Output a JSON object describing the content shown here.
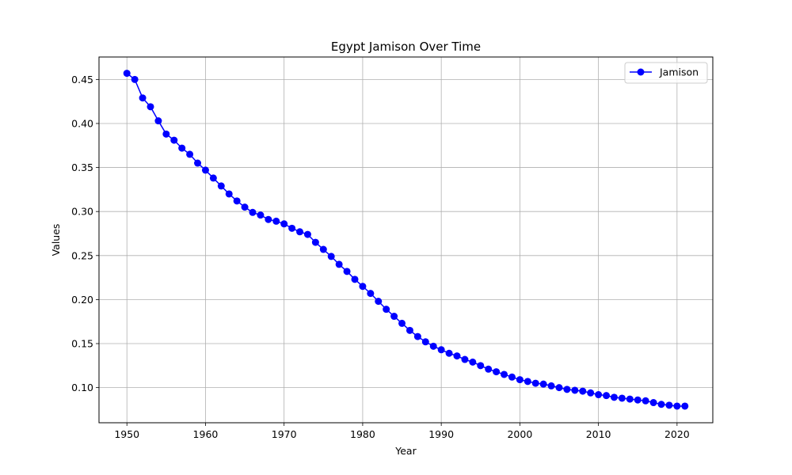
{
  "chart_data": {
    "type": "line",
    "title": "Egypt Jamison Over Time",
    "xlabel": "Year",
    "ylabel": "Values",
    "xlim": [
      1946.45,
      2024.55
    ],
    "ylim": [
      0.0601,
      0.4755
    ],
    "xticks": [
      1950,
      1960,
      1970,
      1980,
      1990,
      2000,
      2010,
      2020
    ],
    "yticks": [
      0.1,
      0.15,
      0.2,
      0.25,
      0.3,
      0.35,
      0.4,
      0.45
    ],
    "grid": true,
    "legend_position": "top-right",
    "series": [
      {
        "name": "Jamison",
        "color": "#0000ff",
        "marker": "circle",
        "x": [
          1950,
          1951,
          1952,
          1953,
          1954,
          1955,
          1956,
          1957,
          1958,
          1959,
          1960,
          1961,
          1962,
          1963,
          1964,
          1965,
          1966,
          1967,
          1968,
          1969,
          1970,
          1971,
          1972,
          1973,
          1974,
          1975,
          1976,
          1977,
          1978,
          1979,
          1980,
          1981,
          1982,
          1983,
          1984,
          1985,
          1986,
          1987,
          1988,
          1989,
          1990,
          1991,
          1992,
          1993,
          1994,
          1995,
          1996,
          1997,
          1998,
          1999,
          2000,
          2001,
          2002,
          2003,
          2004,
          2005,
          2006,
          2007,
          2008,
          2009,
          2010,
          2011,
          2012,
          2013,
          2014,
          2015,
          2016,
          2017,
          2018,
          2019,
          2020,
          2021
        ],
        "y": [
          0.457,
          0.45,
          0.429,
          0.419,
          0.403,
          0.388,
          0.381,
          0.372,
          0.365,
          0.355,
          0.347,
          0.338,
          0.329,
          0.32,
          0.312,
          0.305,
          0.299,
          0.296,
          0.291,
          0.289,
          0.286,
          0.281,
          0.277,
          0.274,
          0.265,
          0.257,
          0.249,
          0.24,
          0.232,
          0.223,
          0.215,
          0.207,
          0.198,
          0.189,
          0.181,
          0.173,
          0.165,
          0.158,
          0.152,
          0.147,
          0.143,
          0.139,
          0.136,
          0.132,
          0.129,
          0.125,
          0.121,
          0.118,
          0.115,
          0.112,
          0.109,
          0.107,
          0.105,
          0.104,
          0.102,
          0.1,
          0.098,
          0.097,
          0.096,
          0.094,
          0.092,
          0.091,
          0.089,
          0.088,
          0.087,
          0.086,
          0.085,
          0.083,
          0.081,
          0.08,
          0.079,
          0.079
        ]
      }
    ]
  }
}
